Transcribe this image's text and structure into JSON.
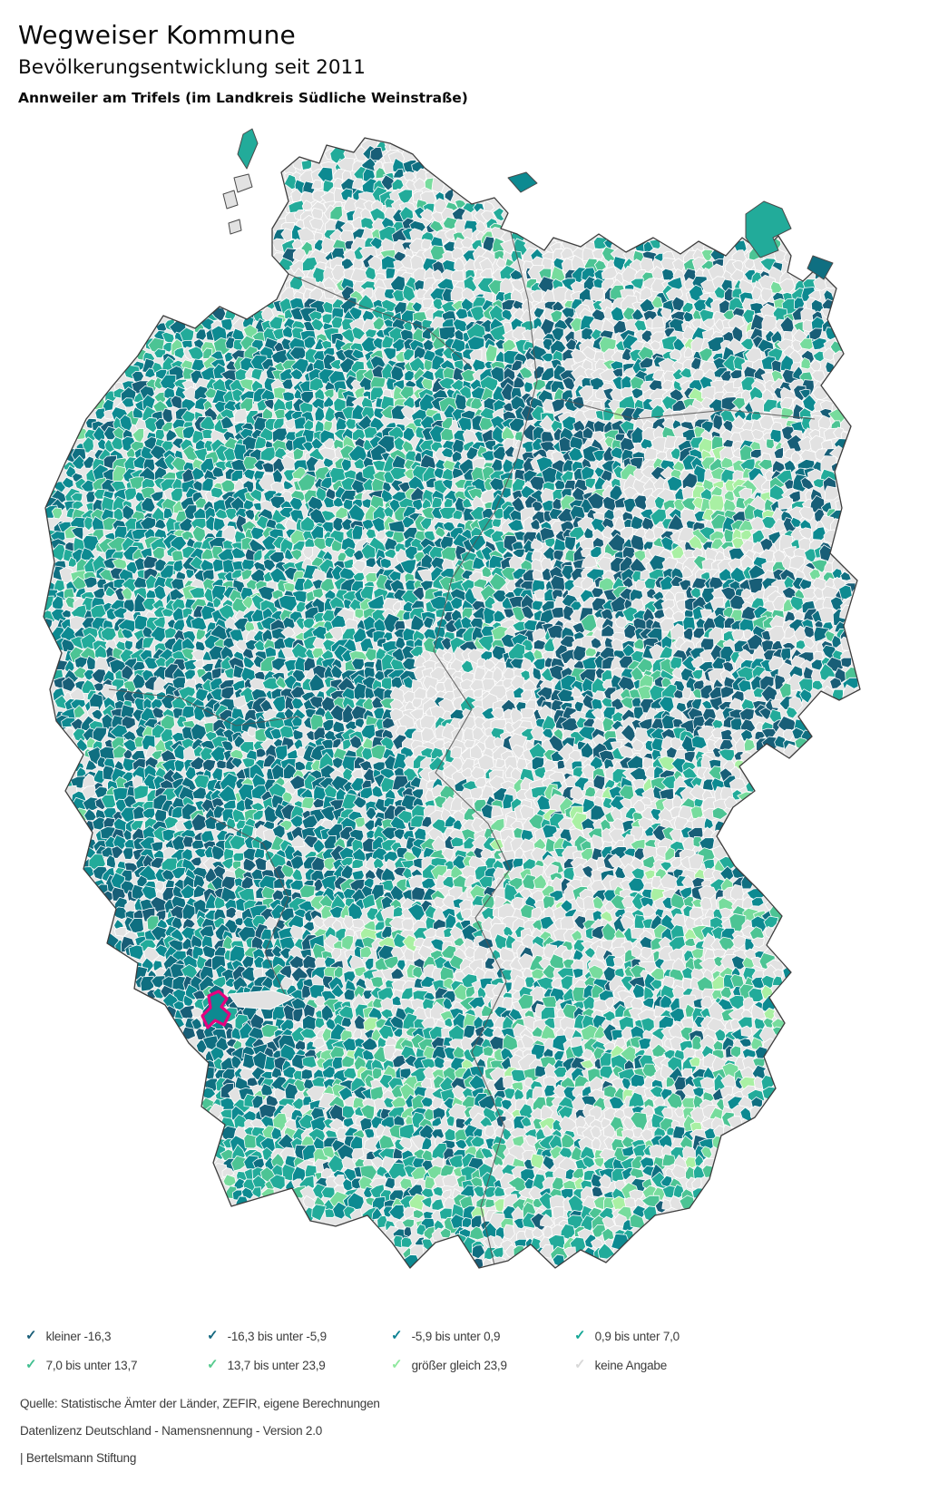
{
  "header": {
    "title": "Wegweiser Kommune",
    "subtitle": "Bevölkerungsentwicklung seit 2011",
    "municipality": "Annweiler am Trifels (im Landkreis Südliche Weinstraße)"
  },
  "legend": {
    "items": [
      {
        "label": "kleiner -16,3",
        "color": "#1A5E78"
      },
      {
        "label": "-16,3 bis unter -5,9",
        "color": "#15687F"
      },
      {
        "label": "-5,9 bis unter 0,9",
        "color": "#0E8294"
      },
      {
        "label": "0,9 bis unter 7,0",
        "color": "#16A796"
      },
      {
        "label": "7,0 bis unter 13,7",
        "color": "#41BF90"
      },
      {
        "label": "13,7 bis unter 23,9",
        "color": "#57CB8E"
      },
      {
        "label": "größer gleich 23,9",
        "color": "#8FE89E"
      },
      {
        "label": "keine Angabe",
        "color": "#D8D8D8"
      }
    ]
  },
  "map": {
    "palette": {
      "class1": "#185E77",
      "class2": "#0F6F81",
      "class3": "#0D8A91",
      "class4": "#22AB9A",
      "class5": "#4CC494",
      "class6": "#77DC9D",
      "class7": "#A9F0A3",
      "no_data": "#E2E2E2"
    },
    "highlight_color": "#E6007E",
    "border_color": "#3D3D3D",
    "sea_color": "#FFFFFF"
  },
  "footer": {
    "source": "Quelle: Statistische Ämter der Länder, ZEFIR, eigene Berechnungen",
    "license": "Datenlizenz Deutschland - Namensnennung - Version 2.0",
    "publisher": "| Bertelsmann Stiftung"
  }
}
